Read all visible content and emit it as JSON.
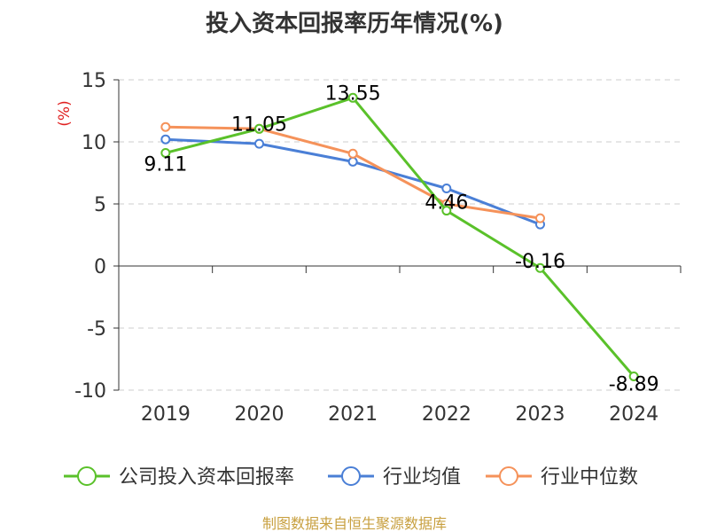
{
  "chart_data": {
    "type": "line",
    "title": "投入资本回报率历年情况(%)",
    "ylabel": "(%)",
    "xlabel": "",
    "categories": [
      "2019",
      "2020",
      "2021",
      "2022",
      "2023",
      "2024"
    ],
    "ylim": [
      -10,
      15
    ],
    "yticks": [
      "15",
      "10",
      "5",
      "0",
      "-5",
      "-10"
    ],
    "yticks_values": [
      15,
      10,
      5,
      0,
      -5,
      -10
    ],
    "grid": true,
    "legend_position": "bottom",
    "series": [
      {
        "name": "公司投入资本回报率",
        "color": "#5ac12a",
        "values": [
          9.11,
          11.05,
          13.55,
          4.46,
          -0.16,
          -8.89
        ],
        "labels": [
          "9.11",
          "11.05",
          "13.55",
          "4.46",
          "-0.16",
          "-8.89"
        ]
      },
      {
        "name": "行业均值",
        "color": "#4a7fd6",
        "values": [
          10.2,
          9.85,
          8.4,
          6.25,
          3.35,
          null
        ]
      },
      {
        "name": "行业中位数",
        "color": "#f5925a",
        "values": [
          11.2,
          11.05,
          9.05,
          5.0,
          3.85,
          null
        ]
      }
    ],
    "source": "制图数据来自恒生聚源数据库"
  }
}
